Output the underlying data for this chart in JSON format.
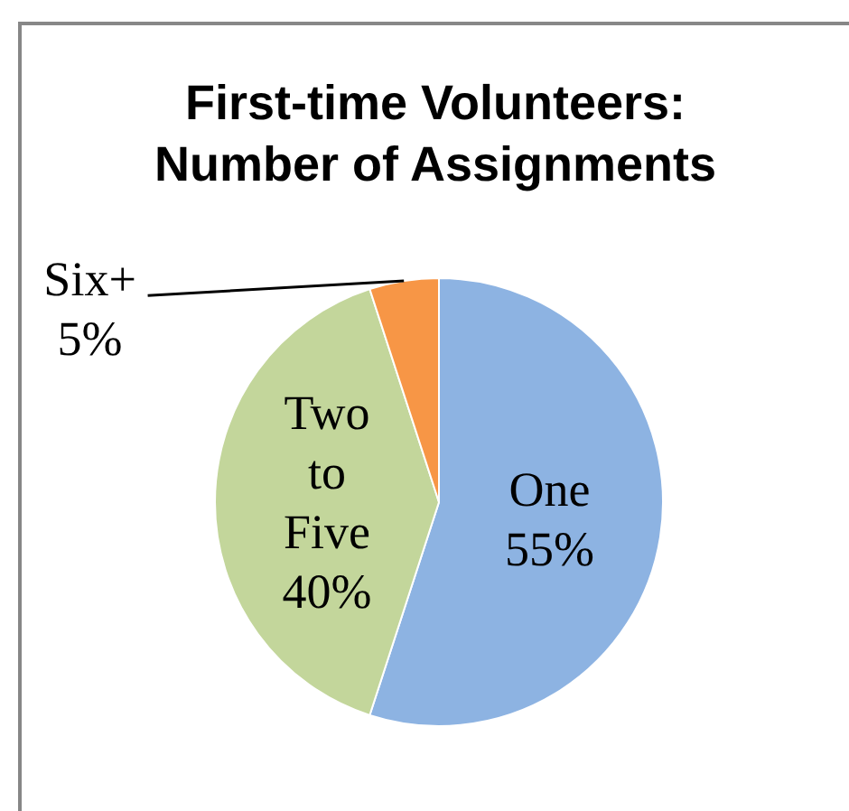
{
  "chart_data": {
    "type": "pie",
    "title": "First-time Volunteers: Number of Assignments",
    "categories": [
      "One",
      "Two to Five",
      "Six+"
    ],
    "values": [
      55,
      40,
      5
    ],
    "value_labels": [
      "55%",
      "40%",
      "5%"
    ],
    "colors": [
      "#8db3e2",
      "#c3d69b",
      "#f79646"
    ]
  }
}
